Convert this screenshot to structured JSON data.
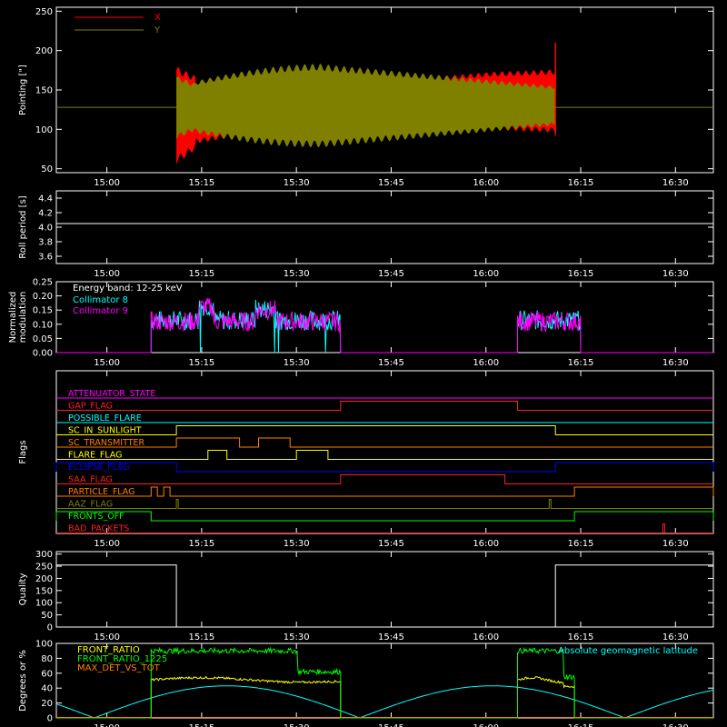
{
  "colors": {
    "background": "#000000",
    "axes": "#ffffff",
    "x_red": "#ff0000",
    "y_olive": "#7f7f00",
    "cyan": "#00ffff",
    "magenta": "#ff00ff",
    "green": "#00ff00",
    "yellow": "#ffff00",
    "orange": "#ff7f00",
    "blue": "#0000ff",
    "dark_red": "#ff2020"
  },
  "chart_data": [
    {
      "id": "pointing",
      "type": "line",
      "ylabel": "Pointing [\"]",
      "ylim": [
        45,
        255
      ],
      "yticks": [
        50,
        100,
        150,
        200,
        250
      ],
      "xlim": [
        "14:52",
        "16:36"
      ],
      "xticks": [
        "15:00",
        "15:15",
        "15:30",
        "15:45",
        "16:00",
        "16:15",
        "16:30"
      ],
      "series": [
        {
          "name": "X",
          "color": "#ff0000",
          "data_start": "15:11",
          "data_end": "16:11",
          "approx_center": 128,
          "approx_amplitude_start": 38,
          "approx_amplitude_end": 32,
          "spike_end": 210
        },
        {
          "name": "Y",
          "color": "#7f7f00",
          "data_start": "15:11",
          "data_end": "16:11",
          "approx_center": 128,
          "approx_amplitude_start": 28,
          "approx_amplitude_mid": 55
        }
      ],
      "reference_line": 128
    },
    {
      "id": "roll_period",
      "type": "line",
      "ylabel": "Roll period [s]",
      "ylim": [
        3.5,
        4.5
      ],
      "yticks": [
        3.6,
        3.8,
        4.0,
        4.2,
        4.4
      ],
      "series": [
        {
          "name": "",
          "value": 4.05,
          "color": "#ffffff"
        }
      ]
    },
    {
      "id": "modulation",
      "type": "line",
      "ylabel": "Normalized modulation",
      "ylim": [
        0,
        0.25
      ],
      "yticks": [
        0.0,
        0.05,
        0.1,
        0.15,
        0.2,
        0.25
      ],
      "annotation": "Energy band: 12-25 keV",
      "series": [
        {
          "name": "Collimator 8",
          "color": "#00ffff",
          "segments": [
            [
              "15:07",
              "15:37"
            ],
            [
              "16:05",
              "16:15"
            ]
          ],
          "approx_level": 0.11
        },
        {
          "name": "Collimator 9",
          "color": "#ff00ff",
          "segments": [
            [
              "15:07",
              "15:37"
            ],
            [
              "16:05",
              "16:15"
            ]
          ],
          "approx_level": 0.11
        }
      ]
    },
    {
      "id": "flags",
      "type": "line",
      "ylabel": "Flags",
      "series": [
        {
          "name": "ATTENUATOR_STATE",
          "color": "#ff00ff",
          "on": []
        },
        {
          "name": "GAP_FLAG",
          "color": "#ff2020",
          "on": [
            [
              "15:37",
              "16:05"
            ]
          ]
        },
        {
          "name": "POSSIBLE_FLARE",
          "color": "#00ffff",
          "on": []
        },
        {
          "name": "SC_IN_SUNLIGHT",
          "color": "#ffff00",
          "on": [
            [
              "15:11",
              "16:11"
            ]
          ]
        },
        {
          "name": "SC_TRANSMITTER",
          "color": "#ff7f00",
          "on": [
            [
              "15:11",
              "15:21"
            ],
            [
              "15:24",
              "15:29"
            ]
          ]
        },
        {
          "name": "FLARE_FLAG",
          "color": "#ffff00",
          "on": [
            [
              "15:16",
              "15:19"
            ],
            [
              "15:30",
              "15:35"
            ]
          ]
        },
        {
          "name": "ECLIPSE_FLAG",
          "color": "#0000ff",
          "on": [
            [
              "14:52",
              "15:11"
            ],
            [
              "16:11",
              "16:36"
            ]
          ]
        },
        {
          "name": "SAA_FLAG",
          "color": "#ff2020",
          "on": [
            [
              "15:37",
              "16:03"
            ]
          ]
        },
        {
          "name": "PARTICLE_FLAG",
          "color": "#ff7f00",
          "on": [
            [
              "15:07",
              "15:08"
            ],
            [
              "15:09",
              "15:10"
            ],
            [
              "16:14",
              "16:36"
            ]
          ]
        },
        {
          "name": "AAZ_FLAG",
          "color": "#7f7f00",
          "on": [
            [
              "15:11",
              "15:11"
            ],
            [
              "16:10",
              "16:10"
            ]
          ]
        },
        {
          "name": "FRONTS_OFF",
          "color": "#00ff00",
          "on": [
            [
              "14:52",
              "15:07"
            ],
            [
              "16:14",
              "16:36"
            ]
          ]
        },
        {
          "name": "BAD_PACKETS",
          "color": "#ff2020",
          "on": [
            [
              "16:28",
              "16:28"
            ]
          ]
        }
      ]
    },
    {
      "id": "quality",
      "type": "line",
      "ylabel": "Quality",
      "ylim": [
        0,
        310
      ],
      "yticks": [
        0,
        50,
        100,
        150,
        200,
        250,
        300
      ],
      "series": [
        {
          "name": "",
          "color": "#ffffff",
          "points": [
            [
              "14:52",
              255
            ],
            [
              "15:11",
              255
            ],
            [
              "15:11",
              0
            ],
            [
              "16:11",
              0
            ],
            [
              "16:11",
              255
            ],
            [
              "16:36",
              255
            ]
          ]
        }
      ]
    },
    {
      "id": "front_ratio",
      "type": "line",
      "ylabel": "Degrees or %",
      "ylim": [
        0,
        100
      ],
      "yticks": [
        0,
        20,
        40,
        60,
        80,
        100
      ],
      "series": [
        {
          "name": "FRONT_RATIO",
          "color": "#ffff00",
          "segments": [
            [
              "15:07",
              "15:37"
            ],
            [
              "16:05",
              "16:14"
            ]
          ],
          "approx_level": 50
        },
        {
          "name": "FRONT_RATIO_1225",
          "color": "#00ff00",
          "segments": [
            [
              "15:07",
              "15:37"
            ],
            [
              "16:05",
              "16:14"
            ]
          ],
          "approx_level": 90
        },
        {
          "name": "MAX_DET_VS_TOT",
          "color": "#ff7f00",
          "segments": [],
          "approx_level": 0
        },
        {
          "name": "Absolute geomagnetic latitude",
          "color": "#00ffff",
          "approx_range": [
            0,
            43
          ],
          "peaks": [
            "15:19",
            "16:00"
          ],
          "zeros": [
            "15:40",
            "16:22"
          ]
        }
      ]
    }
  ]
}
